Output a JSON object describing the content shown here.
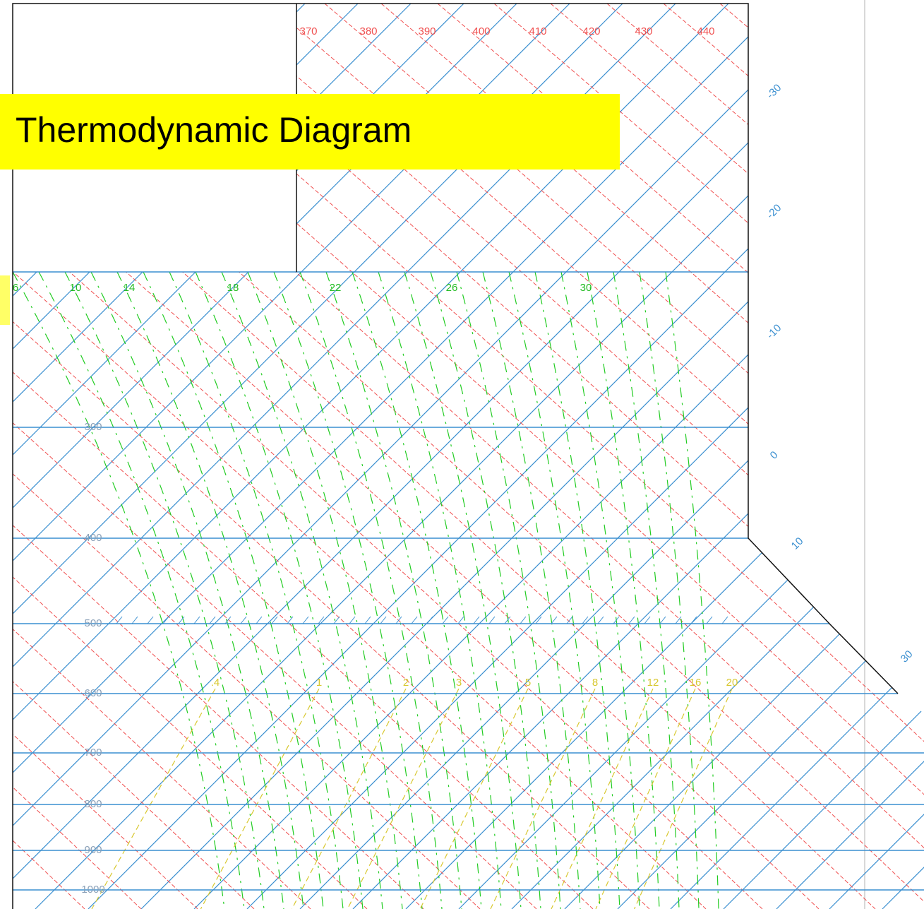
{
  "title": "Thermodynamic Diagram",
  "theta_labels": [
    "370",
    "380",
    "390",
    "400",
    "410",
    "420",
    "430",
    "440"
  ],
  "moist_labels": [
    "6",
    "10",
    "14",
    "18",
    "22",
    "26",
    "30"
  ],
  "pressure_labels": [
    "300",
    "400",
    "500",
    "600",
    "700",
    "800",
    "900",
    "1000"
  ],
  "mixing_labels": [
    ".4",
    "1",
    "2",
    "3",
    "5",
    "8",
    "12",
    "16",
    "20"
  ],
  "isotherm_labels": [
    "-30",
    "-20",
    "-10",
    "0",
    "10",
    "30"
  ]
}
